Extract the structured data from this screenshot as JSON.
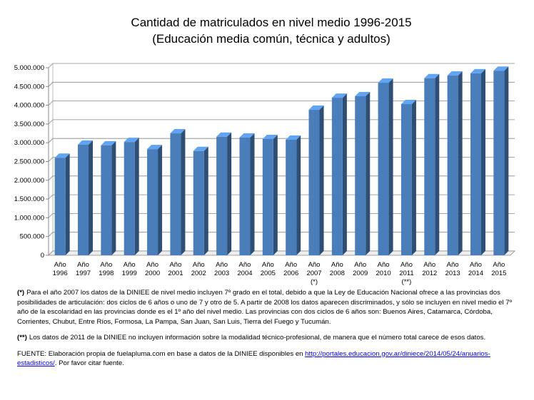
{
  "chart_data": {
    "type": "bar",
    "title": "Cantidad de matriculados en nivel medio 1996-2015",
    "subtitle": "(Educación media común, técnica y adultos)",
    "categories": [
      "Año 1996",
      "Año 1997",
      "Año 1998",
      "Año 1999",
      "Año 2000",
      "Año 2001",
      "Año 2002",
      "Año 2003",
      "Año 2004",
      "Año 2005",
      "Año 2006",
      "Año 2007 (*)",
      "Año 2008",
      "Año 2009",
      "Año 2010",
      "Año 2011 (**)",
      "Año 2012",
      "Año 2013",
      "Año 2014",
      "Año 2015"
    ],
    "values": [
      2600000,
      2950000,
      2930000,
      3020000,
      2830000,
      3250000,
      2780000,
      3160000,
      3140000,
      3100000,
      3080000,
      3880000,
      4200000,
      4240000,
      4600000,
      4030000,
      4720000,
      4790000,
      4850000,
      4920000
    ],
    "color": "#4a7ebb",
    "ylim": [
      0,
      5000000
    ],
    "yticks": [
      0,
      {
        "value": 500000,
        "label": "500.000"
      },
      {
        "value": 1000000,
        "label": "1.000.000"
      },
      {
        "value": 1500000,
        "label": "1.500.000"
      },
      {
        "value": 2000000,
        "label": "2.000.000"
      },
      {
        "value": 2500000,
        "label": "2.500.000"
      },
      {
        "value": 3000000,
        "label": "3.000.000"
      },
      {
        "value": 3500000,
        "label": "3.500.000"
      },
      {
        "value": 4000000,
        "label": "4.000.000"
      },
      {
        "value": 4500000,
        "label": "4.500.000"
      },
      {
        "value": 5000000,
        "label": "5.000.000"
      }
    ],
    "grid": true
  },
  "notes": [
    {
      "marker": "(*)",
      "text": "Para el año 2007 los datos de la DINIEE de nivel medio incluyen 7º grado en el total, debido a que la Ley de Educación Nacional ofrece a las provincias dos posibilidades de articulación: dos ciclos de 6 años o uno de 7 y otro de 5. A partir de 2008 los datos aparecen discriminados, y sólo se incluyen en nivel medio el 7º año de la escolaridad en las provincias donde es el 1º año del nivel medio. Las provincias con dos ciclos de 6 años son: Buenos Aires, Catamarca, Córdoba, Corrientes, Chubut, Entre Ríos, Formosa, La Pampa, San Juan, San Luis, Tierra del Fuego y Tucumán."
    },
    {
      "marker": "(**)",
      "text": "Los datos de 2011 de la DINIEE no incluyen información sobre la modalidad técnico-profesional, de manera que el número total carece de esos datos."
    }
  ],
  "source": {
    "text": "FUENTE: Elaboración propia de fuelapluma.com en base a datos de la DINIEE disponibles en",
    "link": "http://portales.educacion.gov.ar/diniece/2014/05/24/anuarios-estadisticos/",
    "after": ". Por favor citar fuente."
  }
}
